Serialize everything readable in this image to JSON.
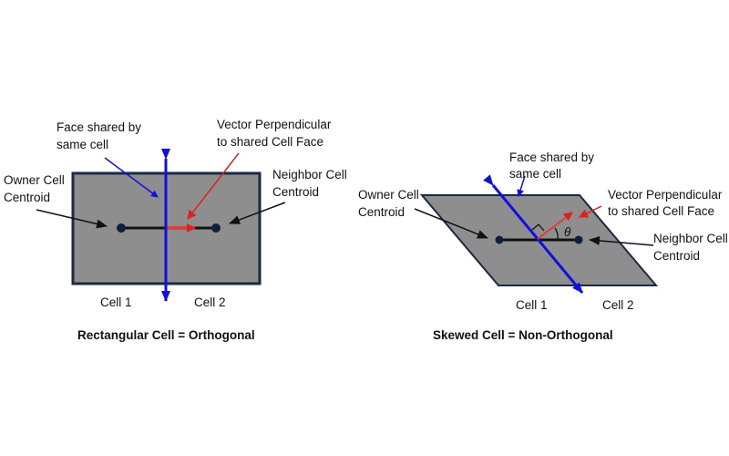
{
  "colors": {
    "cell_fill": "#8e8e8e",
    "cell_border": "#1a2a44",
    "face": "#1010e0",
    "vector": "#e02020",
    "centroid": "#0e2040"
  },
  "left": {
    "face_label": [
      "Face shared by",
      "same cell"
    ],
    "vector_label": [
      "Vector Perpendicular",
      "to shared Cell Face"
    ],
    "owner_label": [
      "Owner Cell",
      "Centroid"
    ],
    "neighbor_label": [
      "Neighbor Cell",
      "Centroid"
    ],
    "cell1": "Cell 1",
    "cell2": "Cell 2",
    "title": "Rectangular Cell = Orthogonal"
  },
  "right": {
    "face_label": [
      "Face shared by",
      "same cell"
    ],
    "vector_label": [
      "Vector Perpendicular",
      "to shared Cell Face"
    ],
    "owner_label": [
      "Owner Cell",
      "Centroid"
    ],
    "neighbor_label": [
      "Neighbor Cell",
      "Centroid"
    ],
    "angle_symbol": "θ",
    "cell1": "Cell 1",
    "cell2": "Cell 2",
    "title": "Skewed Cell = Non-Orthogonal"
  }
}
